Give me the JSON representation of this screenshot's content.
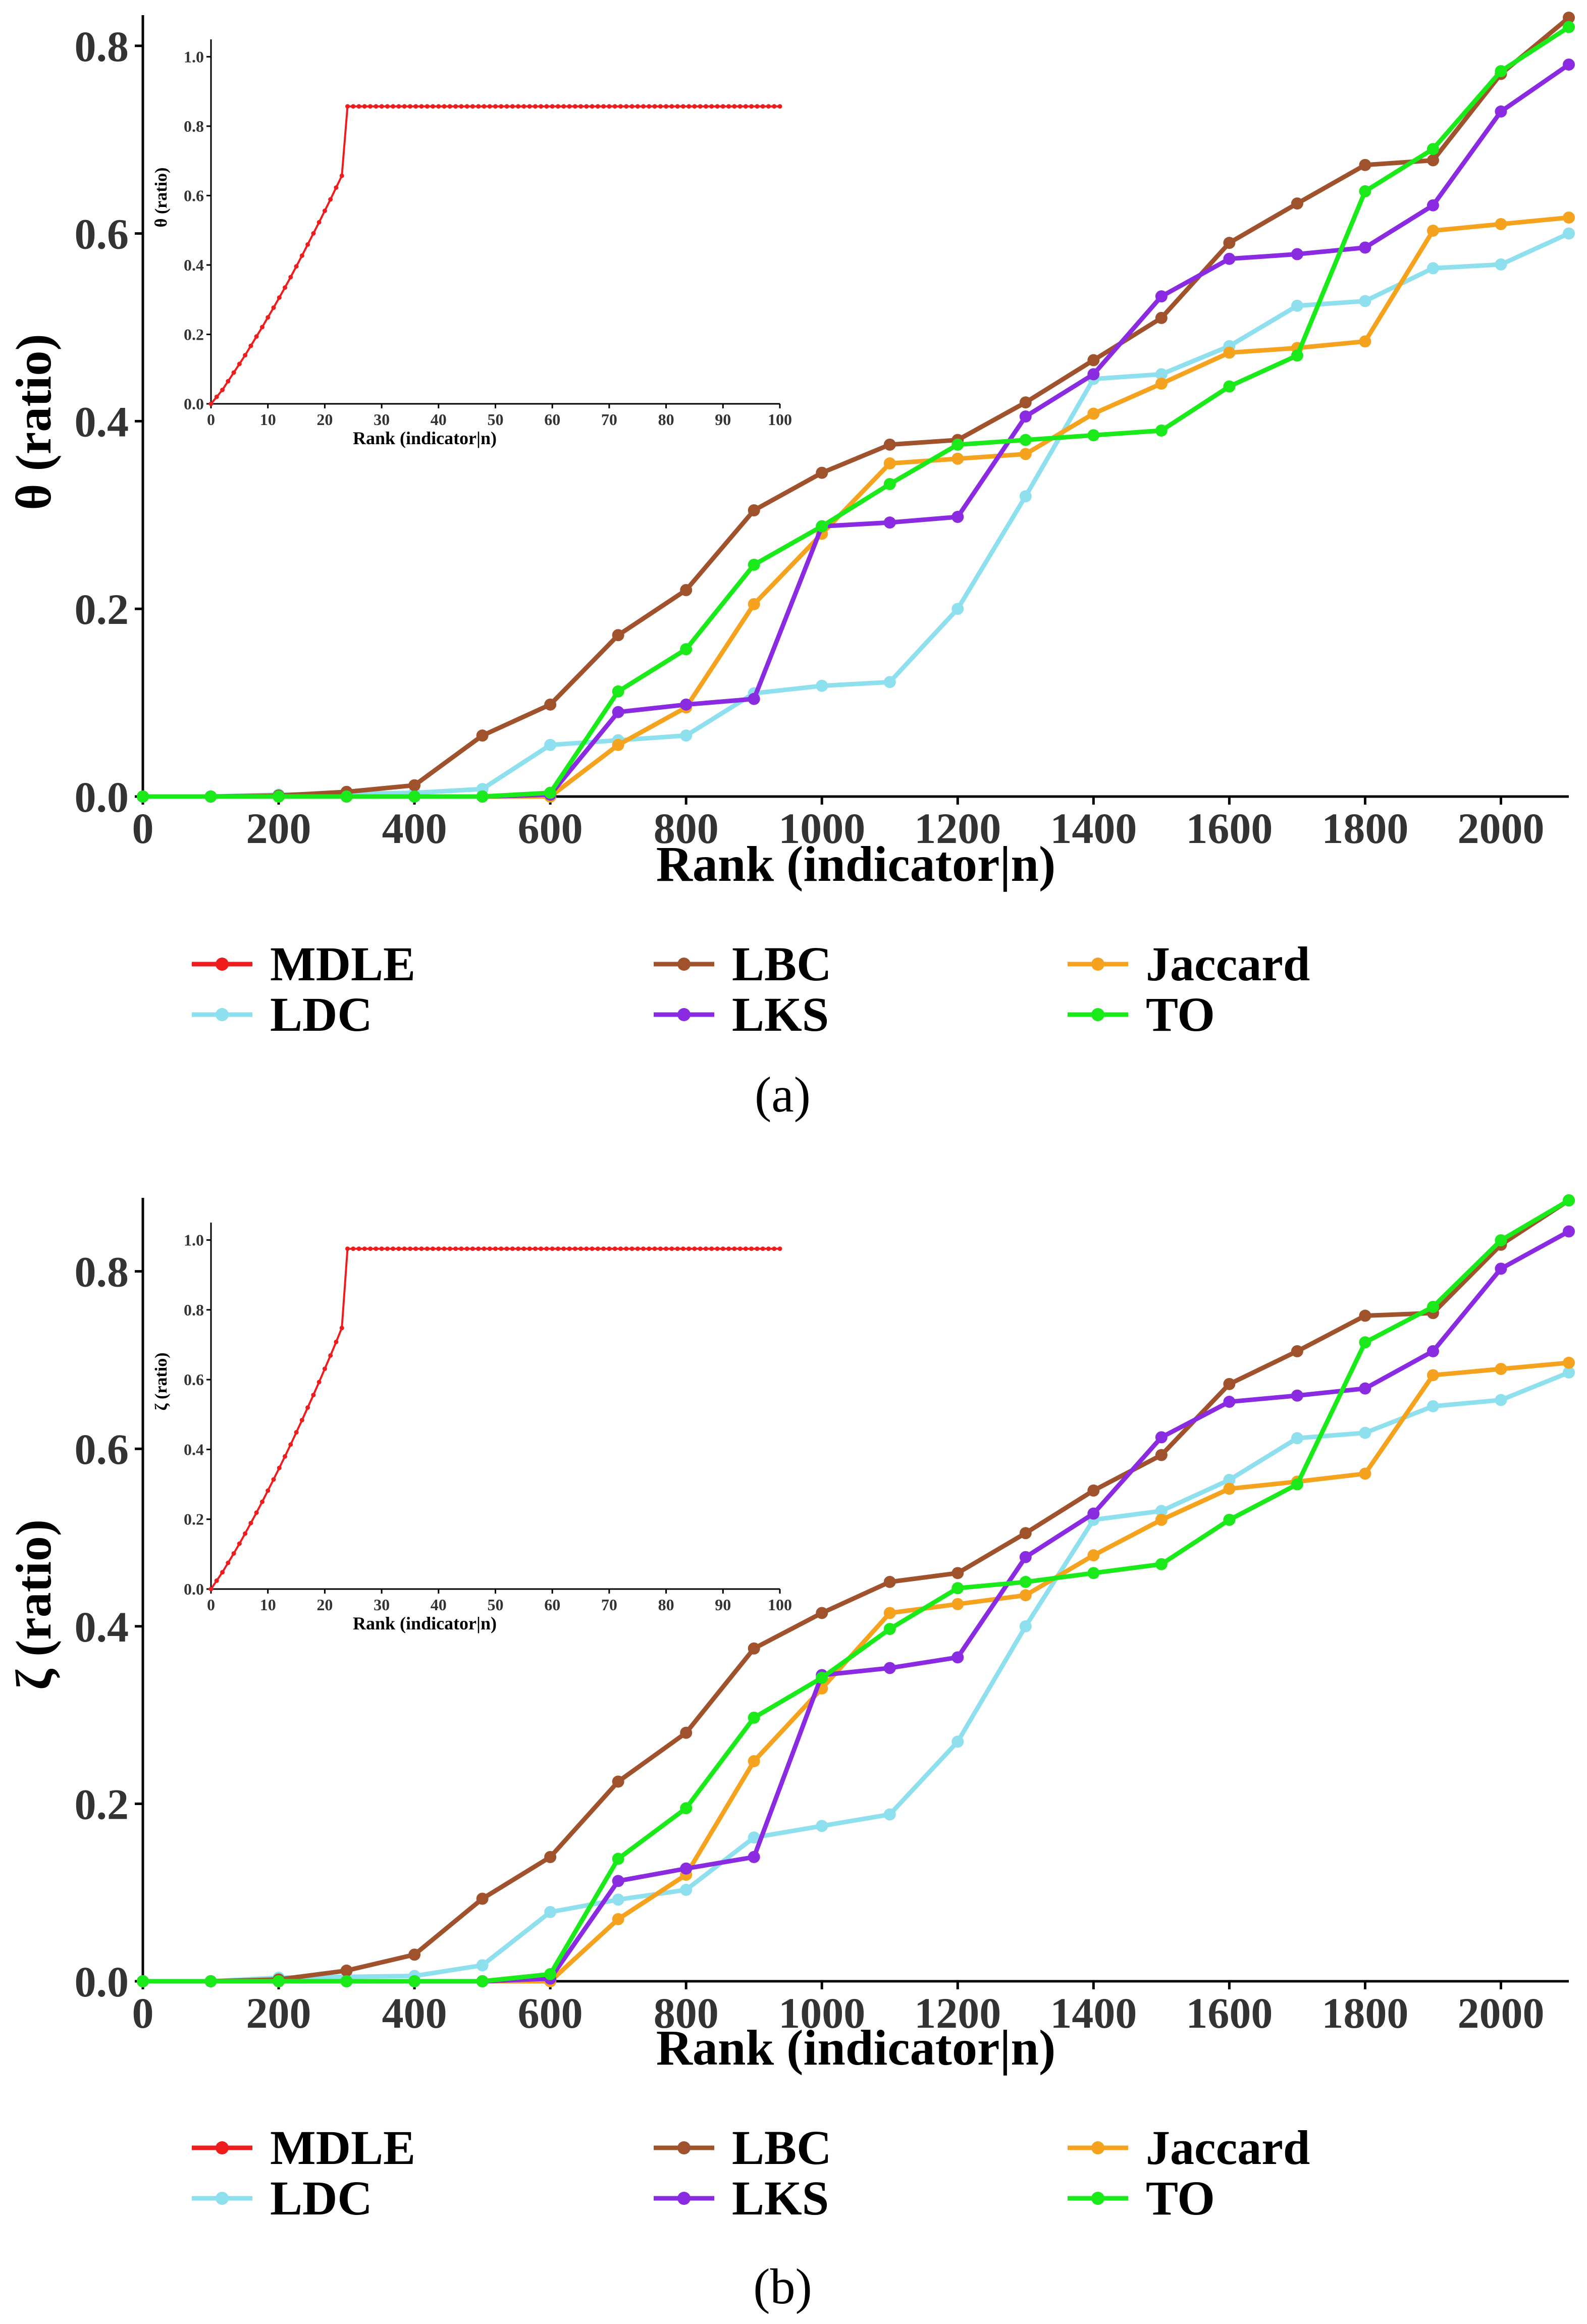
{
  "colors": {
    "MDLE": "#ee1c1c",
    "LBC": "#a0522d",
    "Jaccard": "#f5a31e",
    "LDC": "#8fe0ee",
    "LKS": "#8a2be2",
    "TO": "#1aea1a",
    "axis": "#000000"
  },
  "legend": {
    "labels": [
      "MDLE",
      "LBC",
      "Jaccard",
      "LDC",
      "LKS",
      "TO"
    ]
  },
  "chart_data": [
    {
      "id": "a",
      "panel_label": "(a)",
      "type": "line",
      "xlabel": "Rank (indicator|n)",
      "ylabel": "θ (ratio)",
      "xlim": [
        0,
        2100
      ],
      "ylim": [
        0,
        0.83
      ],
      "xticks": [
        0,
        200,
        400,
        600,
        800,
        1000,
        1200,
        1400,
        1600,
        1800,
        2000
      ],
      "yticks": [
        0.0,
        0.2,
        0.4,
        0.6,
        0.8
      ],
      "x": [
        0,
        100,
        200,
        300,
        400,
        500,
        600,
        700,
        800,
        900,
        1000,
        1100,
        1200,
        1300,
        1400,
        1500,
        1600,
        1700,
        1800,
        1900,
        2000,
        2100
      ],
      "series": [
        {
          "name": "LBC",
          "values": [
            0,
            0,
            0.001,
            0.005,
            0.012,
            0.065,
            0.098,
            0.172,
            0.22,
            0.305,
            0.345,
            0.375,
            0.38,
            0.42,
            0.465,
            0.51,
            0.59,
            0.632,
            0.673,
            0.678,
            0.77,
            0.83
          ]
        },
        {
          "name": "LDC",
          "values": [
            0,
            0,
            0.002,
            0.003,
            0.004,
            0.008,
            0.055,
            0.06,
            0.065,
            0.11,
            0.118,
            0.122,
            0.2,
            0.32,
            0.445,
            0.45,
            0.48,
            0.523,
            0.528,
            0.563,
            0.567,
            0.6
          ]
        },
        {
          "name": "Jaccard",
          "values": [
            0,
            0,
            0,
            0,
            0,
            0,
            0,
            0.055,
            0.095,
            0.205,
            0.28,
            0.355,
            0.36,
            0.365,
            0.408,
            0.44,
            0.473,
            0.478,
            0.485,
            0.603,
            0.61,
            0.617
          ]
        },
        {
          "name": "LKS",
          "values": [
            0,
            0,
            0,
            0,
            0,
            0,
            0.002,
            0.09,
            0.098,
            0.104,
            0.288,
            0.292,
            0.298,
            0.405,
            0.45,
            0.533,
            0.573,
            0.578,
            0.585,
            0.63,
            0.73,
            0.78
          ]
        },
        {
          "name": "TO",
          "values": [
            0,
            0,
            0,
            0,
            0,
            0,
            0.004,
            0.112,
            0.157,
            0.247,
            0.288,
            0.333,
            0.375,
            0.38,
            0.385,
            0.39,
            0.437,
            0.47,
            0.645,
            0.69,
            0.773,
            0.82
          ]
        }
      ],
      "inset": {
        "type": "line",
        "series_name": "MDLE",
        "xlabel": "Rank (indicator|n)",
        "ylabel": "θ (ratio)",
        "xlim": [
          0,
          100
        ],
        "ylim": [
          0,
          1.05
        ],
        "xticks": [
          0,
          10,
          20,
          30,
          40,
          50,
          60,
          70,
          80,
          90,
          100
        ],
        "yticks": [
          "0.0",
          "0.2",
          "0.4",
          "0.6",
          "0.8",
          "1.0"
        ],
        "x": [
          0,
          1,
          2,
          3,
          4,
          5,
          6,
          7,
          8,
          9,
          10,
          11,
          12,
          13,
          14,
          15,
          16,
          17,
          18,
          19,
          20,
          21,
          22,
          23,
          24,
          25,
          26,
          27,
          28,
          29,
          30,
          31,
          32,
          33,
          34,
          35,
          36,
          37,
          38,
          39,
          40,
          41,
          42,
          43,
          44,
          45,
          46,
          47,
          48,
          49,
          50,
          51,
          52,
          53,
          54,
          55,
          56,
          57,
          58,
          59,
          60,
          61,
          62,
          63,
          64,
          65,
          66,
          67,
          68,
          69,
          70,
          71,
          72,
          73,
          74,
          75,
          76,
          77,
          78,
          79,
          80,
          81,
          82,
          83,
          84,
          85,
          86,
          87,
          88,
          89,
          90,
          91,
          92,
          93,
          94,
          95,
          96,
          97,
          98,
          99,
          100
        ],
        "values": [
          0,
          0.02,
          0.04,
          0.065,
          0.09,
          0.115,
          0.14,
          0.167,
          0.194,
          0.221,
          0.249,
          0.277,
          0.306,
          0.335,
          0.365,
          0.396,
          0.427,
          0.459,
          0.491,
          0.523,
          0.556,
          0.589,
          0.623,
          0.657,
          0.857,
          0.857,
          0.857,
          0.857,
          0.857,
          0.857,
          0.857,
          0.857,
          0.857,
          0.857,
          0.857,
          0.857,
          0.857,
          0.857,
          0.857,
          0.857,
          0.857,
          0.857,
          0.857,
          0.857,
          0.857,
          0.857,
          0.857,
          0.857,
          0.857,
          0.857,
          0.857,
          0.857,
          0.857,
          0.857,
          0.857,
          0.857,
          0.857,
          0.857,
          0.857,
          0.857,
          0.857,
          0.857,
          0.857,
          0.857,
          0.857,
          0.857,
          0.857,
          0.857,
          0.857,
          0.857,
          0.857,
          0.857,
          0.857,
          0.857,
          0.857,
          0.857,
          0.857,
          0.857,
          0.857,
          0.857,
          0.857,
          0.857,
          0.857,
          0.857,
          0.857,
          0.857,
          0.857,
          0.857,
          0.857,
          0.857,
          0.857,
          0.857,
          0.857,
          0.857,
          0.857,
          0.857,
          0.857,
          0.857,
          0.857,
          0.857,
          0.857
        ]
      }
    },
    {
      "id": "b",
      "panel_label": "(b)",
      "type": "line",
      "xlabel": "Rank (indicator|n)",
      "ylabel": "ζ (ratio)",
      "xlim": [
        0,
        2100
      ],
      "ylim": [
        0,
        0.88
      ],
      "xticks": [
        0,
        200,
        400,
        600,
        800,
        1000,
        1200,
        1400,
        1600,
        1800,
        2000
      ],
      "yticks": [
        0.0,
        0.2,
        0.4,
        0.6,
        0.8
      ],
      "x": [
        0,
        100,
        200,
        300,
        400,
        500,
        600,
        700,
        800,
        900,
        1000,
        1100,
        1200,
        1300,
        1400,
        1500,
        1600,
        1700,
        1800,
        1900,
        2000,
        2100
      ],
      "series": [
        {
          "name": "LBC",
          "values": [
            0,
            0,
            0.002,
            0.012,
            0.03,
            0.093,
            0.14,
            0.225,
            0.28,
            0.375,
            0.415,
            0.45,
            0.46,
            0.505,
            0.553,
            0.593,
            0.673,
            0.71,
            0.75,
            0.753,
            0.83,
            0.88
          ]
        },
        {
          "name": "LDC",
          "values": [
            0,
            0,
            0.004,
            0.005,
            0.006,
            0.018,
            0.078,
            0.092,
            0.103,
            0.162,
            0.175,
            0.188,
            0.27,
            0.4,
            0.52,
            0.53,
            0.565,
            0.612,
            0.618,
            0.648,
            0.655,
            0.686
          ]
        },
        {
          "name": "Jaccard",
          "values": [
            0,
            0,
            0,
            0,
            0,
            0,
            0,
            0.07,
            0.12,
            0.248,
            0.33,
            0.415,
            0.425,
            0.435,
            0.48,
            0.52,
            0.555,
            0.563,
            0.572,
            0.683,
            0.69,
            0.697
          ]
        },
        {
          "name": "LKS",
          "values": [
            0,
            0,
            0,
            0,
            0,
            0,
            0.003,
            0.113,
            0.127,
            0.14,
            0.345,
            0.353,
            0.365,
            0.478,
            0.527,
            0.613,
            0.653,
            0.66,
            0.668,
            0.71,
            0.803,
            0.845
          ]
        },
        {
          "name": "TO",
          "values": [
            0,
            0,
            0,
            0,
            0,
            0,
            0.008,
            0.138,
            0.195,
            0.297,
            0.342,
            0.397,
            0.443,
            0.45,
            0.46,
            0.47,
            0.52,
            0.56,
            0.72,
            0.76,
            0.835,
            0.88
          ]
        }
      ],
      "inset": {
        "type": "line",
        "series_name": "MDLE",
        "xlabel": "Rank (indicator|n)",
        "ylabel": "ζ (ratio)",
        "xlim": [
          0,
          100
        ],
        "ylim": [
          0,
          1.05
        ],
        "xticks": [
          0,
          10,
          20,
          30,
          40,
          50,
          60,
          70,
          80,
          90,
          100
        ],
        "yticks": [
          "0.0",
          "0.2",
          "0.4",
          "0.6",
          "0.8",
          "1.0"
        ],
        "x": [
          0,
          1,
          2,
          3,
          4,
          5,
          6,
          7,
          8,
          9,
          10,
          11,
          12,
          13,
          14,
          15,
          16,
          17,
          18,
          19,
          20,
          21,
          22,
          23,
          24,
          25,
          26,
          27,
          28,
          29,
          30,
          31,
          32,
          33,
          34,
          35,
          36,
          37,
          38,
          39,
          40,
          41,
          42,
          43,
          44,
          45,
          46,
          47,
          48,
          49,
          50,
          51,
          52,
          53,
          54,
          55,
          56,
          57,
          58,
          59,
          60,
          61,
          62,
          63,
          64,
          65,
          66,
          67,
          68,
          69,
          70,
          71,
          72,
          73,
          74,
          75,
          76,
          77,
          78,
          79,
          80,
          81,
          82,
          83,
          84,
          85,
          86,
          87,
          88,
          89,
          90,
          91,
          92,
          93,
          94,
          95,
          96,
          97,
          98,
          99,
          100
        ],
        "values": [
          0,
          0.024,
          0.048,
          0.075,
          0.102,
          0.13,
          0.159,
          0.189,
          0.219,
          0.25,
          0.282,
          0.314,
          0.347,
          0.38,
          0.414,
          0.449,
          0.484,
          0.52,
          0.556,
          0.593,
          0.631,
          0.669,
          0.708,
          0.748,
          0.975,
          0.975,
          0.975,
          0.975,
          0.975,
          0.975,
          0.975,
          0.975,
          0.975,
          0.975,
          0.975,
          0.975,
          0.975,
          0.975,
          0.975,
          0.975,
          0.975,
          0.975,
          0.975,
          0.975,
          0.975,
          0.975,
          0.975,
          0.975,
          0.975,
          0.975,
          0.975,
          0.975,
          0.975,
          0.975,
          0.975,
          0.975,
          0.975,
          0.975,
          0.975,
          0.975,
          0.975,
          0.975,
          0.975,
          0.975,
          0.975,
          0.975,
          0.975,
          0.975,
          0.975,
          0.975,
          0.975,
          0.975,
          0.975,
          0.975,
          0.975,
          0.975,
          0.975,
          0.975,
          0.975,
          0.975,
          0.975,
          0.975,
          0.975,
          0.975,
          0.975,
          0.975,
          0.975,
          0.975,
          0.975,
          0.975,
          0.975,
          0.975,
          0.975,
          0.975,
          0.975,
          0.975,
          0.975,
          0.975,
          0.975,
          0.975,
          0.975
        ]
      }
    }
  ]
}
